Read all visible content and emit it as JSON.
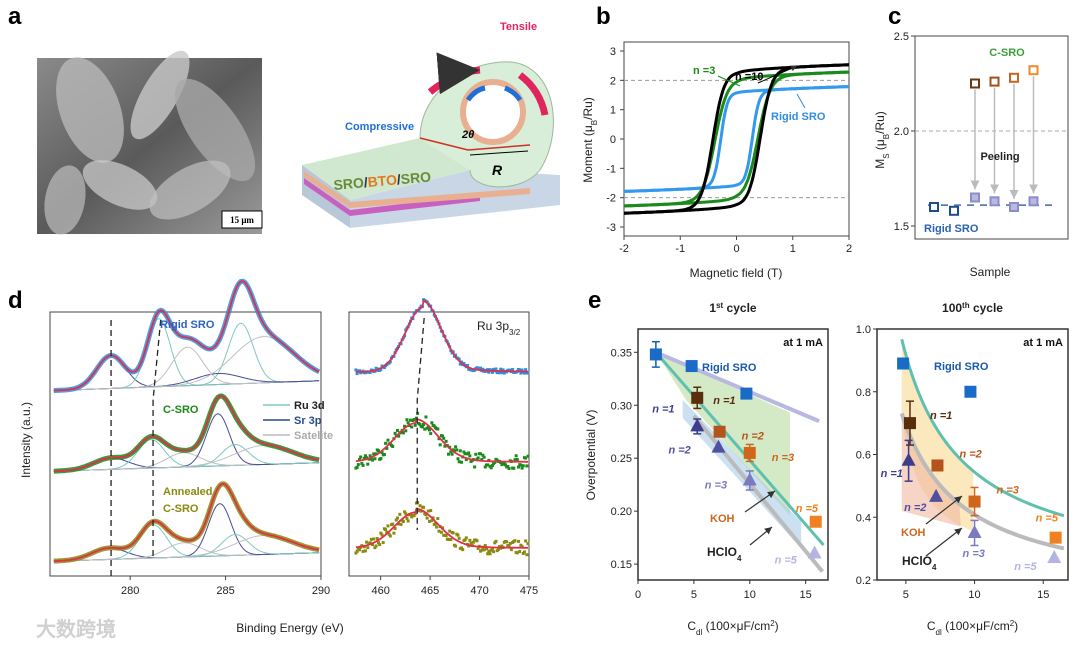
{
  "panel_labels": {
    "a": "a",
    "b": "b",
    "c": "c",
    "d": "d",
    "e": "e"
  },
  "panel_a": {
    "sem_scale_bar": "15 μm",
    "schematic": {
      "tensile": "Tensile",
      "compressive": "Compressive",
      "angle": "2θ",
      "radius": "R",
      "stack": [
        "SRO",
        "/",
        "BTO",
        "/",
        "SRO"
      ]
    },
    "colors": {
      "tensile": "#e0245e",
      "compressive": "#1f6fd6",
      "sro": "#6a8a3a",
      "bto": "#e07a1f"
    }
  },
  "watermark": "大数跨境",
  "chart_data": [
    {
      "id": "b",
      "type": "line",
      "xlabel": "Magnetic field (T)",
      "ylabel_parts": [
        "Moment (μ",
        "B",
        "/Ru)"
      ],
      "xlim": [
        -2,
        2
      ],
      "ylim": [
        -3.3,
        3.3
      ],
      "xticks": [
        "-2",
        "-1",
        "0",
        "1",
        "2"
      ],
      "yticks": [
        "3",
        "2",
        "1",
        "0",
        "-1",
        "-2",
        "-3"
      ],
      "reference_lines": [
        2,
        -2
      ],
      "series": [
        {
          "name": "n =10",
          "color": "#000000",
          "Ms": 2.45,
          "Hc": 0.42,
          "width": 0.2
        },
        {
          "name": "n =3",
          "color": "#1a8a1a",
          "Ms": 2.2,
          "Hc": 0.38,
          "width": 0.22
        },
        {
          "name": "Rigid SRO",
          "color": "#3399ee",
          "Ms": 1.7,
          "Hc": 0.28,
          "width": 0.12
        }
      ]
    },
    {
      "id": "c",
      "type": "scatter",
      "xlabel": "Sample",
      "ylabel_parts": [
        "M",
        "S",
        " (μ",
        "B",
        "/Ru)"
      ],
      "ylim": [
        1.5,
        2.5
      ],
      "yticks": [
        "2.5",
        "2.0",
        "1.5"
      ],
      "reference_line": 2.0,
      "rigid_level": 1.61,
      "labels": {
        "c_sro": "C-SRO",
        "peeling": "Peeling",
        "rigid": "Rigid SRO"
      },
      "rigid_points": [
        1.6,
        1.58
      ],
      "c_sro_points": [
        {
          "before": 2.25,
          "after": 1.65,
          "color": "#6b3a10"
        },
        {
          "before": 2.26,
          "after": 1.63,
          "color": "#a0501a"
        },
        {
          "before": 2.28,
          "after": 1.6,
          "color": "#c8641e"
        },
        {
          "before": 2.32,
          "after": 1.63,
          "color": "#f08a28"
        }
      ],
      "colors": {
        "rigid": "#1a4f8c",
        "peeled": "#8c8cc8"
      }
    },
    {
      "id": "d",
      "type": "line",
      "xlabel": "Binding Energy (eV)",
      "ylabel": "Intensity (a.u.)",
      "left": {
        "xlim": [
          275.8,
          290
        ],
        "xticks": [
          280,
          285,
          290
        ]
      },
      "right": {
        "xlim": [
          456.8,
          475
        ],
        "xticks": [
          460,
          465,
          470,
          475
        ],
        "label_parts": [
          "Ru 3",
          "p",
          "3/2"
        ]
      },
      "legend": [
        {
          "name": "Ru 3d",
          "color": "#7fc8c0"
        },
        {
          "name": "Sr 3p",
          "color": "#2a4a8a"
        },
        {
          "name": "Satelite",
          "color": "#bbbbbb"
        }
      ],
      "spectra": [
        {
          "name": "Rigid SRO",
          "color": "#2f8de0",
          "peaks": [
            {
              "c": 279,
              "a": 0.3,
              "w": 0.75,
              "k": "sr"
            },
            {
              "c": 281.5,
              "a": 0.62,
              "w": 0.6,
              "k": "ru"
            },
            {
              "c": 283,
              "a": 0.35,
              "w": 0.8,
              "k": "sat"
            },
            {
              "c": 285.8,
              "a": 0.55,
              "w": 0.65,
              "k": "ru"
            },
            {
              "c": 284.6,
              "a": 0.1,
              "w": 1.2,
              "k": "sr"
            },
            {
              "c": 287,
              "a": 0.42,
              "w": 1.6,
              "k": "sat"
            }
          ],
          "ru3p": {
            "c": 464.3,
            "a": 1.0,
            "w": 1.8
          }
        },
        {
          "name": "C-SRO",
          "color": "#1a8a1a",
          "peaks": [
            {
              "c": 279,
              "a": 0.12,
              "w": 0.9,
              "k": "sr"
            },
            {
              "c": 281.1,
              "a": 0.3,
              "w": 0.7,
              "k": "ru"
            },
            {
              "c": 282.8,
              "a": 0.15,
              "w": 0.9,
              "k": "sat"
            },
            {
              "c": 284.6,
              "a": 0.55,
              "w": 0.6,
              "k": "sr"
            },
            {
              "c": 285.5,
              "a": 0.22,
              "w": 0.7,
              "k": "ru"
            },
            {
              "c": 287,
              "a": 0.2,
              "w": 1.5,
              "k": "sat"
            }
          ],
          "ru3p": {
            "c": 463.6,
            "a": 0.6,
            "w": 2.2
          }
        },
        {
          "name_parts": [
            "Annealed",
            "C-SRO"
          ],
          "color": "#8a8a10",
          "peaks": [
            {
              "c": 278.9,
              "a": 0.12,
              "w": 0.9,
              "k": "sr"
            },
            {
              "c": 281.2,
              "a": 0.35,
              "w": 0.7,
              "k": "ru"
            },
            {
              "c": 282.8,
              "a": 0.15,
              "w": 0.9,
              "k": "sat"
            },
            {
              "c": 284.7,
              "a": 0.55,
              "w": 0.6,
              "k": "sr"
            },
            {
              "c": 285.5,
              "a": 0.22,
              "w": 0.7,
              "k": "ru"
            },
            {
              "c": 287,
              "a": 0.2,
              "w": 1.5,
              "k": "sat"
            }
          ],
          "ru3p": {
            "c": 463.6,
            "a": 0.55,
            "w": 2.2
          }
        }
      ],
      "fit_color": "#e0304a"
    },
    {
      "id": "e1",
      "type": "scatter",
      "title_parts": [
        "1",
        "st",
        " cycle"
      ],
      "condition": "at 1 mA",
      "xlabel_parts": [
        "C",
        "dl",
        " (100×μF/cm",
        "2",
        ")"
      ],
      "ylabel": "Overpotential (V)",
      "xlim": [
        0,
        17
      ],
      "ylim": [
        0.135,
        0.372
      ],
      "xticks": [
        "0",
        "5",
        "10",
        "15"
      ],
      "yticks": [
        "0.35",
        "0.30",
        "0.25",
        "0.20",
        "0.15"
      ],
      "labels": {
        "rigid": "Rigid SRO",
        "koh": "KOH",
        "hclo4_parts": [
          "HClO",
          "4"
        ]
      },
      "rigid": [
        [
          1.6,
          0.348,
          0.012
        ],
        [
          4.8,
          0.337,
          0
        ],
        [
          9.7,
          0.311,
          0
        ]
      ],
      "koh": [
        {
          "n": "n =1",
          "x": 5.3,
          "y": 0.307,
          "e": 0.01,
          "color": "#5a2d0c"
        },
        {
          "n": "n =2",
          "x": 7.3,
          "y": 0.275,
          "e": 0,
          "color": "#b5541a"
        },
        {
          "n": "n =3",
          "x": 10,
          "y": 0.255,
          "e": 0.008,
          "color": "#d0661c"
        },
        {
          "n": "n =5",
          "x": 15.9,
          "y": 0.19,
          "e": 0,
          "color": "#f08020"
        }
      ],
      "hclo4": [
        {
          "n": "n =1",
          "x": 5.3,
          "y": 0.28,
          "e": 0.007,
          "color": "#3d3d8c"
        },
        {
          "n": "n =2",
          "x": 7.2,
          "y": 0.26,
          "e": 0,
          "color": "#5050a0"
        },
        {
          "n": "n =3",
          "x": 10,
          "y": 0.229,
          "e": 0.009,
          "color": "#7a7ac0"
        },
        {
          "n": "n =5",
          "x": 15.8,
          "y": 0.16,
          "e": 0,
          "color": "#b4b4e4"
        }
      ]
    },
    {
      "id": "e2",
      "type": "scatter",
      "title_parts": [
        "100",
        "th",
        " cycle"
      ],
      "condition": "at 1 mA",
      "xlabel_parts": [
        "C",
        "dl",
        " (100×μF/cm",
        "2",
        ")"
      ],
      "xlim": [
        2.9,
        16.8
      ],
      "ylim": [
        0.2,
        1.0
      ],
      "xticks": [
        "5",
        "10",
        "15"
      ],
      "yticks": [
        "1.0",
        "0.8",
        "0.6",
        "0.4",
        "0.2"
      ],
      "labels": {
        "rigid": "Rigid SRO",
        "koh": "KOH",
        "hclo4_parts": [
          "HClO",
          "4"
        ]
      },
      "rigid": [
        [
          4.8,
          0.89,
          0
        ],
        [
          9.7,
          0.8,
          0
        ]
      ],
      "koh": [
        {
          "n": "n =1",
          "x": 5.3,
          "y": 0.7,
          "e": 0.07,
          "color": "#5a2d0c"
        },
        {
          "n": "n =2",
          "x": 7.3,
          "y": 0.565,
          "e": 0,
          "color": "#b5541a"
        },
        {
          "n": "n =3",
          "x": 10,
          "y": 0.45,
          "e": 0.045,
          "color": "#d0661c"
        },
        {
          "n": "n =5",
          "x": 15.9,
          "y": 0.335,
          "e": 0,
          "color": "#f08020"
        }
      ],
      "hclo4": [
        {
          "n": "n =1",
          "x": 5.2,
          "y": 0.58,
          "e": 0.065,
          "color": "#3d3d8c"
        },
        {
          "n": "n =2",
          "x": 7.2,
          "y": 0.465,
          "e": 0,
          "color": "#5050a0"
        },
        {
          "n": "n =3",
          "x": 10,
          "y": 0.35,
          "e": 0.04,
          "color": "#7a7ac0"
        },
        {
          "n": "n =5",
          "x": 15.8,
          "y": 0.27,
          "e": 0,
          "color": "#b4b4e4"
        }
      ]
    }
  ]
}
